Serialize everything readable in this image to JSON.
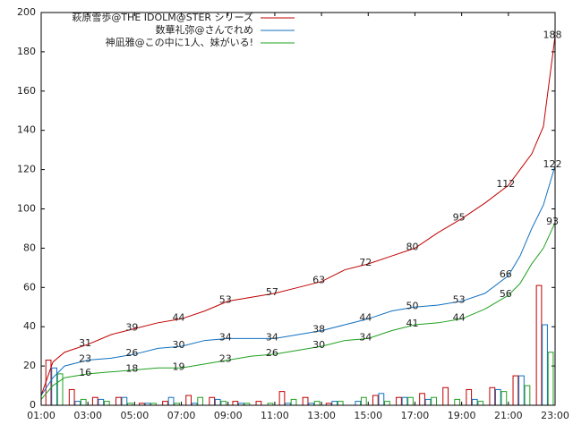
{
  "chart_data": {
    "type": "line",
    "xlim": [
      1,
      23
    ],
    "xticks": [
      {
        "value": 1,
        "label": "01:00"
      },
      {
        "value": 3,
        "label": "03:00"
      },
      {
        "value": 5,
        "label": "05:00"
      },
      {
        "value": 7,
        "label": "07:00"
      },
      {
        "value": 9,
        "label": "09:00"
      },
      {
        "value": 11,
        "label": "11:00"
      },
      {
        "value": 13,
        "label": "13:00"
      },
      {
        "value": 15,
        "label": "15:00"
      },
      {
        "value": 17,
        "label": "17:00"
      },
      {
        "value": 19,
        "label": "19:00"
      },
      {
        "value": 21,
        "label": "21:00"
      },
      {
        "value": 23,
        "label": "23:00"
      }
    ],
    "ylim": [
      0,
      200
    ],
    "yticks": [
      0,
      20,
      40,
      60,
      80,
      100,
      120,
      140,
      160,
      180,
      200
    ],
    "x": [
      1,
      1.5,
      2,
      3,
      4,
      5,
      6,
      7,
      8,
      9,
      10,
      11,
      12,
      13,
      14,
      15,
      16,
      17,
      18,
      19,
      20,
      21,
      21.5,
      22,
      22.5,
      23
    ],
    "count_x": [
      1,
      2,
      3,
      4,
      5,
      6,
      7,
      8,
      9,
      10,
      11,
      12,
      13,
      14,
      15,
      16,
      17,
      18,
      19,
      20,
      21,
      22
    ],
    "series": [
      {
        "name": "萩原雪歩@THE IDOLM@STER シリーズ",
        "color": "#c00000",
        "values": [
          5,
          22,
          27,
          31,
          36,
          39,
          42,
          44,
          48,
          53,
          55,
          57,
          60,
          63,
          69,
          72,
          76,
          80,
          88,
          95,
          103,
          112,
          120,
          128,
          142,
          188
        ],
        "counts": [
          23,
          8,
          4,
          4,
          1,
          2,
          5,
          4,
          2,
          2,
          7,
          4,
          1,
          0,
          5,
          4,
          6,
          9,
          8,
          9,
          15,
          61
        ]
      },
      {
        "name": "数華礼弥@さんでれめ",
        "color": "#1070c0",
        "values": [
          5,
          14,
          20,
          23,
          24,
          26,
          29,
          30,
          33,
          34,
          34,
          34,
          36,
          38,
          41,
          44,
          48,
          50,
          51,
          53,
          57,
          66,
          76,
          90,
          102,
          122
        ],
        "counts": [
          19,
          2,
          3,
          4,
          1,
          4,
          1,
          3,
          1,
          0,
          1,
          1,
          2,
          2,
          6,
          4,
          3,
          0,
          3,
          8,
          15,
          41
        ]
      },
      {
        "name": "神凪雅@この中に1人、妹がいる!",
        "color": "#20a020",
        "values": [
          3,
          10,
          14,
          16,
          17,
          18,
          19,
          19,
          21,
          23,
          25,
          26,
          28,
          30,
          33,
          34,
          38,
          41,
          42,
          44,
          49,
          56,
          62,
          72,
          80,
          93
        ],
        "counts": [
          16,
          3,
          2,
          1,
          1,
          1,
          4,
          2,
          1,
          1,
          3,
          2,
          2,
          4,
          2,
          4,
          4,
          3,
          2,
          7,
          10,
          27
        ]
      }
    ]
  }
}
